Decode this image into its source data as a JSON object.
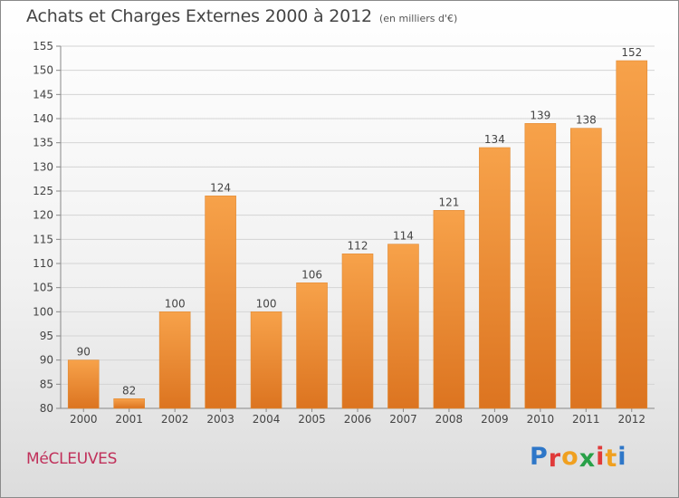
{
  "header": {
    "title": "Achats et Charges Externes 2000 à 2012",
    "subtitle": "(en milliers d'€)"
  },
  "footer": {
    "commune": "MéCLEUVES",
    "brand": "Proxiti"
  },
  "colors": {
    "bar_light": "#f7a24a",
    "bar_dark": "#dc7420",
    "commune_text": "#c0305a",
    "brand_letters": [
      "#2e77c8",
      "#e03a3a",
      "#f0a020",
      "#28a048",
      "#e03a3a",
      "#f0a020",
      "#2e77c8"
    ]
  },
  "chart_data": {
    "type": "bar",
    "title": "Achats et Charges Externes 2000 à 2012",
    "subtitle": "(en milliers d'€)",
    "xlabel": "",
    "ylabel": "",
    "categories": [
      "2000",
      "2001",
      "2002",
      "2003",
      "2004",
      "2005",
      "2006",
      "2007",
      "2008",
      "2009",
      "2010",
      "2011",
      "2012"
    ],
    "values": [
      90,
      82,
      100,
      124,
      100,
      106,
      112,
      114,
      121,
      134,
      139,
      138,
      152
    ],
    "ylim": [
      80,
      155
    ],
    "yticks": [
      80,
      85,
      90,
      95,
      100,
      105,
      110,
      115,
      120,
      125,
      130,
      135,
      140,
      145,
      150,
      155
    ],
    "grid": true,
    "legend": "none",
    "data_labels": true
  }
}
